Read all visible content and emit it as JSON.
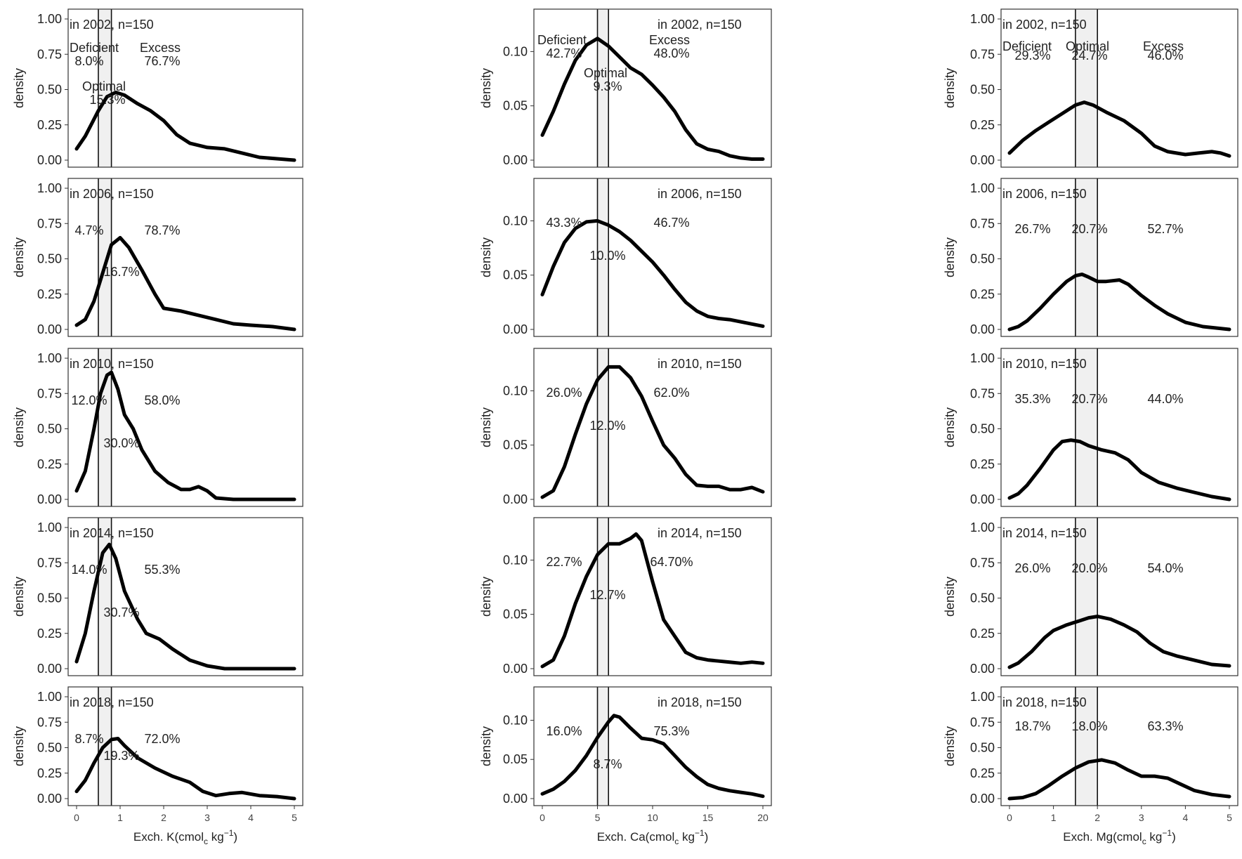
{
  "style": {
    "curve_color": "#000000",
    "band_fill": "#f0f0f0",
    "frame_color": "#333333"
  },
  "chart_data": [
    {
      "type": "line",
      "nutrient": "K",
      "xlabel_main": "Exch. K(cmol",
      "xlabel_sub": "c",
      "xlabel_unit": " kg",
      "xlabel_sup": "−1",
      "xlabel_close": ")",
      "ylabel": "density",
      "xlim": [
        0,
        5
      ],
      "xticks": [
        0,
        1,
        2,
        3,
        4,
        5
      ],
      "ylim": [
        0,
        1
      ],
      "yticks": [
        "0.00",
        "0.25",
        "0.50",
        "0.75",
        "1.00"
      ],
      "optimal_band": [
        0.5,
        0.8
      ],
      "panels": [
        {
          "title": "in 2002, n=150",
          "header_labels": [
            "Deficient",
            "Optimal",
            "Excess"
          ],
          "deficient": "8.0%",
          "optimal": "15.3%",
          "excess": "76.7%",
          "x": [
            0,
            0.2,
            0.5,
            0.7,
            0.9,
            1.1,
            1.4,
            1.7,
            2.0,
            2.3,
            2.6,
            3.0,
            3.4,
            3.8,
            4.2,
            4.6,
            5.0
          ],
          "y": [
            0.08,
            0.17,
            0.35,
            0.45,
            0.48,
            0.46,
            0.4,
            0.35,
            0.28,
            0.18,
            0.12,
            0.09,
            0.08,
            0.05,
            0.02,
            0.01,
            0.0
          ]
        },
        {
          "title": "in 2006, n=150",
          "header_labels": [],
          "deficient": "4.7%",
          "optimal": "16.7%",
          "excess": "78.7%",
          "x": [
            0,
            0.2,
            0.4,
            0.6,
            0.8,
            1.0,
            1.2,
            1.5,
            1.8,
            2.0,
            2.4,
            2.8,
            3.2,
            3.6,
            4.0,
            4.5,
            5.0
          ],
          "y": [
            0.03,
            0.07,
            0.2,
            0.4,
            0.6,
            0.65,
            0.58,
            0.42,
            0.25,
            0.15,
            0.13,
            0.1,
            0.07,
            0.04,
            0.03,
            0.02,
            0.0
          ]
        },
        {
          "title": "in 2010, n=150",
          "header_labels": [],
          "deficient": "12.0%",
          "optimal": "30.0%",
          "excess": "58.0%",
          "x": [
            0,
            0.2,
            0.4,
            0.55,
            0.7,
            0.8,
            0.95,
            1.1,
            1.3,
            1.5,
            1.8,
            2.1,
            2.4,
            2.6,
            2.8,
            3.0,
            3.2,
            3.6,
            4.0,
            5.0
          ],
          "y": [
            0.06,
            0.2,
            0.5,
            0.75,
            0.88,
            0.9,
            0.78,
            0.6,
            0.5,
            0.35,
            0.2,
            0.12,
            0.07,
            0.07,
            0.09,
            0.06,
            0.01,
            0.0,
            0.0,
            0.0
          ]
        },
        {
          "title": "in 2014, n=150",
          "header_labels": [],
          "deficient": "14.0%",
          "optimal": "30.7%",
          "excess": "55.3%",
          "x": [
            0,
            0.2,
            0.4,
            0.6,
            0.75,
            0.9,
            1.1,
            1.4,
            1.6,
            1.9,
            2.2,
            2.6,
            3.0,
            3.4,
            4.0,
            5.0
          ],
          "y": [
            0.05,
            0.25,
            0.55,
            0.82,
            0.88,
            0.78,
            0.55,
            0.35,
            0.25,
            0.21,
            0.14,
            0.06,
            0.02,
            0.0,
            0.0,
            0.0
          ]
        },
        {
          "title": "in 2018, n=150",
          "header_labels": [],
          "deficient": "8.7%",
          "optimal": "19.3%",
          "excess": "72.0%",
          "x": [
            0,
            0.2,
            0.4,
            0.6,
            0.8,
            0.95,
            1.1,
            1.4,
            1.8,
            2.2,
            2.6,
            2.9,
            3.2,
            3.5,
            3.8,
            4.2,
            4.6,
            5.0
          ],
          "y": [
            0.07,
            0.18,
            0.35,
            0.5,
            0.58,
            0.59,
            0.52,
            0.4,
            0.3,
            0.22,
            0.16,
            0.07,
            0.03,
            0.05,
            0.06,
            0.03,
            0.02,
            0.0
          ]
        }
      ]
    },
    {
      "type": "line",
      "nutrient": "Ca",
      "xlabel_main": "Exch. Ca(cmol",
      "xlabel_sub": "c",
      "xlabel_unit": " kg",
      "xlabel_sup": "−1",
      "xlabel_close": ")",
      "ylabel": "density",
      "xlim": [
        0,
        20
      ],
      "xticks": [
        0,
        5,
        10,
        15,
        20
      ],
      "ylim": [
        0,
        0.13
      ],
      "yticks": [
        "0.00",
        "0.05",
        "0.10"
      ],
      "optimal_band": [
        5,
        6
      ],
      "panels": [
        {
          "title": "in 2002, n=150",
          "header_labels": [
            "Deficient",
            "Optimal",
            "Excess"
          ],
          "deficient": "42.7%",
          "optimal": "9.3%",
          "excess": "48.0%",
          "x": [
            0,
            1,
            2,
            3,
            4,
            5,
            6,
            7,
            8,
            9,
            10,
            11,
            12,
            13,
            14,
            15,
            16,
            17,
            18,
            19,
            20
          ],
          "y": [
            0.023,
            0.045,
            0.07,
            0.092,
            0.106,
            0.112,
            0.105,
            0.095,
            0.085,
            0.079,
            0.069,
            0.058,
            0.045,
            0.028,
            0.015,
            0.01,
            0.008,
            0.004,
            0.002,
            0.001,
            0.001
          ]
        },
        {
          "title": "in 2006, n=150",
          "header_labels": [],
          "deficient": "43.3%",
          "optimal": "10.0%",
          "excess": "46.7%",
          "x": [
            0,
            1,
            2,
            3,
            4,
            5,
            6,
            7,
            8,
            9,
            10,
            11,
            12,
            13,
            14,
            15,
            16,
            17,
            18,
            19,
            20
          ],
          "y": [
            0.032,
            0.058,
            0.08,
            0.093,
            0.099,
            0.1,
            0.096,
            0.09,
            0.082,
            0.072,
            0.062,
            0.05,
            0.037,
            0.025,
            0.017,
            0.012,
            0.01,
            0.009,
            0.007,
            0.005,
            0.003
          ]
        },
        {
          "title": "in 2010, n=150",
          "header_labels": [],
          "deficient": "26.0%",
          "optimal": "12.0%",
          "excess": "62.0%",
          "x": [
            0,
            1,
            2,
            3,
            4,
            5,
            6,
            7,
            8,
            9,
            10,
            11,
            12,
            13,
            14,
            15,
            16,
            17,
            18,
            19,
            20
          ],
          "y": [
            0.002,
            0.008,
            0.03,
            0.06,
            0.088,
            0.11,
            0.122,
            0.122,
            0.112,
            0.095,
            0.072,
            0.05,
            0.038,
            0.023,
            0.013,
            0.012,
            0.012,
            0.009,
            0.009,
            0.011,
            0.007
          ]
        },
        {
          "title": "in 2014, n=150",
          "header_labels": [],
          "deficient": "22.7%",
          "optimal": "12.7%",
          "excess": "64.70%",
          "x": [
            0,
            1,
            2,
            3,
            4,
            5,
            6,
            7,
            8,
            8.5,
            9,
            10,
            11,
            12,
            13,
            14,
            15,
            16,
            17,
            18,
            19,
            20
          ],
          "y": [
            0.002,
            0.008,
            0.03,
            0.06,
            0.085,
            0.105,
            0.115,
            0.115,
            0.12,
            0.124,
            0.118,
            0.08,
            0.045,
            0.03,
            0.015,
            0.01,
            0.008,
            0.007,
            0.006,
            0.005,
            0.006,
            0.005
          ]
        },
        {
          "title": "in 2018, n=150",
          "header_labels": [],
          "deficient": "16.0%",
          "optimal": "8.7%",
          "excess": "75.3%",
          "x": [
            0,
            1,
            2,
            3,
            4,
            5,
            6,
            6.5,
            7,
            8,
            9,
            10,
            11,
            12,
            13,
            14,
            15,
            16,
            17,
            18,
            19,
            20
          ],
          "y": [
            0.006,
            0.012,
            0.022,
            0.036,
            0.055,
            0.078,
            0.098,
            0.106,
            0.104,
            0.09,
            0.077,
            0.075,
            0.07,
            0.055,
            0.04,
            0.028,
            0.018,
            0.013,
            0.01,
            0.008,
            0.006,
            0.003
          ]
        }
      ]
    },
    {
      "type": "line",
      "nutrient": "Mg",
      "xlabel_main": "Exch. Mg(cmol",
      "xlabel_sub": "c",
      "xlabel_unit": " kg",
      "xlabel_sup": "−1",
      "xlabel_close": ")",
      "ylabel": "density",
      "xlim": [
        0,
        5
      ],
      "xticks": [
        0,
        1,
        2,
        3,
        4,
        5
      ],
      "ylim": [
        0,
        1
      ],
      "yticks": [
        "0.00",
        "0.25",
        "0.50",
        "0.75",
        "1.00"
      ],
      "optimal_band": [
        1.5,
        2
      ],
      "panels": [
        {
          "title": "in 2002, n=150",
          "header_labels": [
            "Deficient",
            "Optimal",
            "Excess"
          ],
          "deficient": "29.3%",
          "optimal": "24.7%",
          "excess": "46.0%",
          "x": [
            0,
            0.3,
            0.6,
            0.9,
            1.2,
            1.5,
            1.7,
            1.9,
            2.2,
            2.6,
            3.0,
            3.3,
            3.6,
            4.0,
            4.3,
            4.6,
            4.8,
            5.0
          ],
          "y": [
            0.05,
            0.14,
            0.21,
            0.27,
            0.33,
            0.39,
            0.41,
            0.39,
            0.34,
            0.28,
            0.19,
            0.1,
            0.06,
            0.04,
            0.05,
            0.06,
            0.05,
            0.03
          ]
        },
        {
          "title": "in 2006, n=150",
          "header_labels": [],
          "deficient": "26.7%",
          "optimal": "20.7%",
          "excess": "52.7%",
          "x": [
            0,
            0.2,
            0.4,
            0.7,
            1.0,
            1.3,
            1.5,
            1.65,
            1.8,
            2.0,
            2.2,
            2.5,
            2.7,
            3.0,
            3.3,
            3.6,
            4.0,
            4.4,
            4.7,
            5.0
          ],
          "y": [
            0.0,
            0.02,
            0.06,
            0.15,
            0.25,
            0.34,
            0.38,
            0.39,
            0.37,
            0.34,
            0.34,
            0.35,
            0.32,
            0.24,
            0.17,
            0.11,
            0.05,
            0.02,
            0.01,
            0.0
          ]
        },
        {
          "title": "in 2010, n=150",
          "header_labels": [],
          "deficient": "35.3%",
          "optimal": "20.7%",
          "excess": "44.0%",
          "x": [
            0,
            0.2,
            0.4,
            0.7,
            1.0,
            1.2,
            1.4,
            1.6,
            1.8,
            2.1,
            2.4,
            2.7,
            3.0,
            3.4,
            3.8,
            4.2,
            4.6,
            5.0
          ],
          "y": [
            0.01,
            0.04,
            0.1,
            0.22,
            0.35,
            0.41,
            0.42,
            0.41,
            0.38,
            0.35,
            0.33,
            0.28,
            0.19,
            0.12,
            0.08,
            0.05,
            0.02,
            0.0
          ]
        },
        {
          "title": "in 2014, n=150",
          "header_labels": [],
          "deficient": "26.0%",
          "optimal": "20.0%",
          "excess": "54.0%",
          "x": [
            0,
            0.2,
            0.5,
            0.8,
            1.0,
            1.3,
            1.6,
            1.8,
            2.0,
            2.3,
            2.6,
            2.9,
            3.2,
            3.5,
            3.8,
            4.2,
            4.6,
            5.0
          ],
          "y": [
            0.01,
            0.04,
            0.12,
            0.22,
            0.27,
            0.31,
            0.34,
            0.36,
            0.37,
            0.35,
            0.31,
            0.26,
            0.18,
            0.12,
            0.09,
            0.06,
            0.03,
            0.02
          ]
        },
        {
          "title": "in 2018, n=150",
          "header_labels": [],
          "deficient": "18.7%",
          "optimal": "18.0%",
          "excess": "63.3%",
          "x": [
            0,
            0.3,
            0.6,
            0.9,
            1.2,
            1.5,
            1.8,
            2.1,
            2.4,
            2.7,
            3.0,
            3.3,
            3.6,
            3.9,
            4.2,
            4.6,
            5.0
          ],
          "y": [
            0.0,
            0.01,
            0.05,
            0.13,
            0.22,
            0.3,
            0.36,
            0.38,
            0.35,
            0.28,
            0.22,
            0.22,
            0.2,
            0.14,
            0.08,
            0.04,
            0.02
          ]
        }
      ]
    }
  ]
}
